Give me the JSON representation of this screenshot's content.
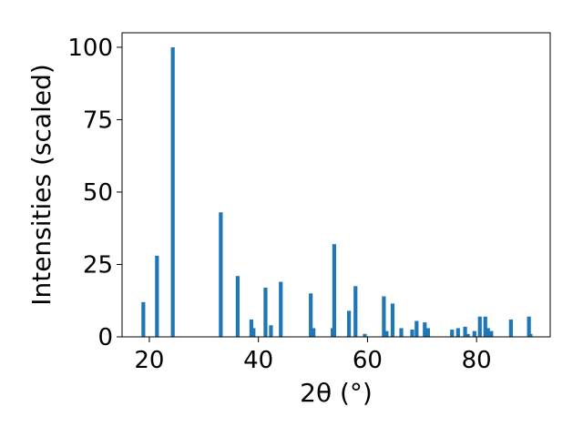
{
  "chart_data": {
    "type": "bar",
    "xlabel": "2θ (°)",
    "ylabel": "Intensities (scaled)",
    "xlim": [
      15,
      93.5
    ],
    "ylim": [
      0,
      105
    ],
    "xticks": [
      "20",
      "40",
      "60",
      "80"
    ],
    "yticks": [
      "0",
      "25",
      "50",
      "75",
      "100"
    ],
    "bar_color": "#1f77b4",
    "grid": false,
    "x": [
      18.9,
      21.4,
      24.3,
      33.1,
      36.2,
      38.7,
      39.1,
      41.3,
      42.3,
      44.1,
      49.6,
      50.1,
      53.6,
      53.9,
      56.6,
      57.8,
      59.5,
      63.0,
      63.5,
      64.6,
      66.2,
      68.2,
      69.0,
      70.5,
      71.1,
      75.5,
      76.6,
      77.9,
      78.4,
      79.6,
      80.6,
      81.6,
      82.1,
      82.7,
      86.3,
      89.6,
      89.9
    ],
    "values": [
      12,
      28,
      100,
      43,
      21,
      6,
      3,
      17,
      4,
      19,
      15,
      3,
      3,
      32,
      9,
      17.5,
      1,
      14,
      2,
      11.5,
      3,
      2.5,
      5.5,
      5,
      3,
      2.5,
      3,
      3.5,
      1,
      2,
      7,
      7,
      3,
      2,
      6,
      7,
      1
    ]
  }
}
